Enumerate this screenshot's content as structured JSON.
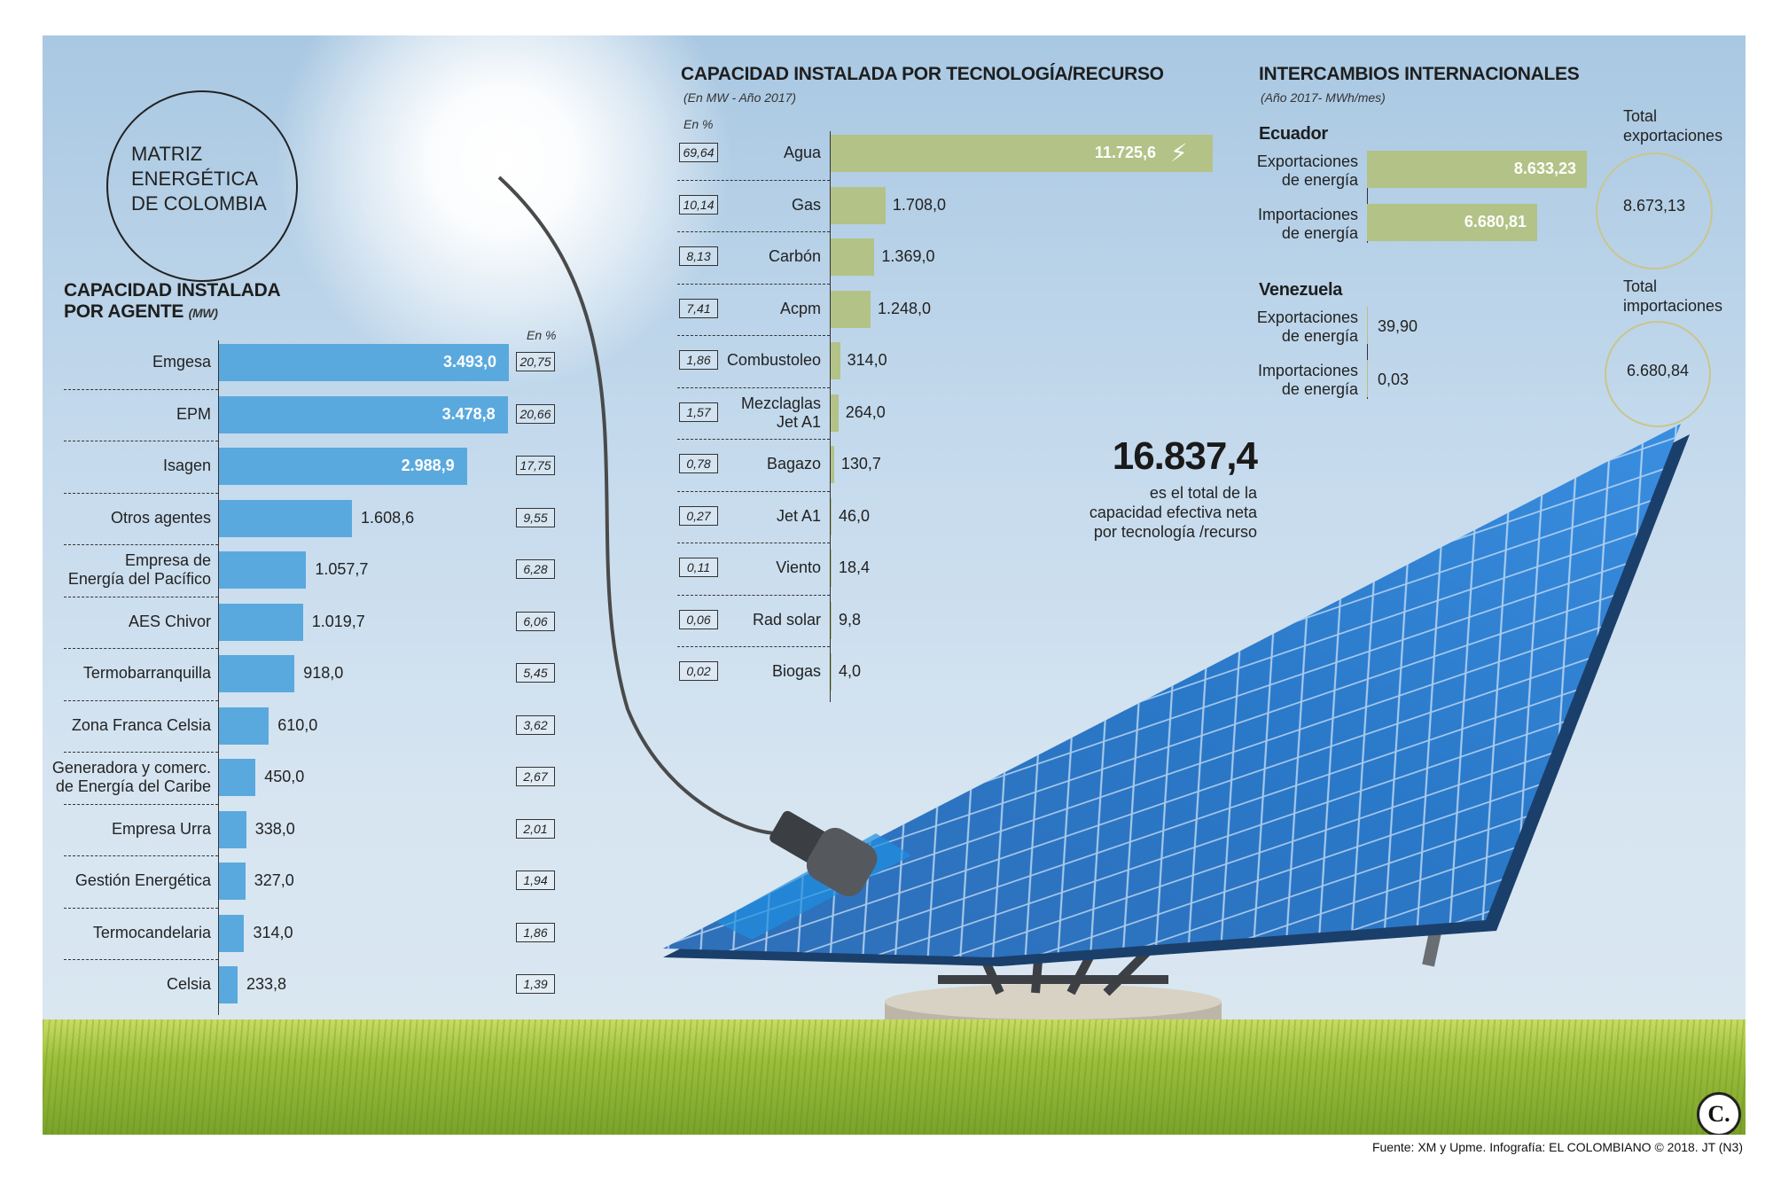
{
  "title": [
    "MATRIZ",
    "ENERGÉTICA",
    "DE COLOMBIA"
  ],
  "colors": {
    "agent_bar": "#5aa9de",
    "tech_bar": "#b3c286",
    "exchange_bar": "#b3c286"
  },
  "agents": {
    "heading_line1": "CAPACIDAD INSTALADA",
    "heading_line2": "POR AGENTE",
    "unit": "(MW)",
    "pct_header": "En %"
  },
  "tech": {
    "heading": "CAPACIDAD INSTALADA POR TECNOLOGÍA/RECURSO",
    "sub": "(En MW - Año 2017)",
    "pct_header": "En %"
  },
  "total": {
    "value": "16.837,4",
    "caption": [
      "es el total de la",
      "capacidad efectiva neta",
      "por tecnología /recurso"
    ]
  },
  "exchanges": {
    "heading": "INTERCAMBIOS INTERNACIONALES",
    "sub": "(Año 2017- MWh/mes)",
    "total_exports_label": [
      "Total",
      "exportaciones"
    ],
    "total_exports_value": "8.673,13",
    "total_imports_label": [
      "Total",
      "importaciones"
    ],
    "total_imports_value": "6.680,84"
  },
  "footer": "Fuente: XM y Upme. Infografía: EL COLOMBIANO © 2018. JT (N3)",
  "logo_text": "C.",
  "chart_data": [
    {
      "type": "bar",
      "orientation": "horizontal",
      "title": "CAPACIDAD INSTALADA POR AGENTE (MW)",
      "categories": [
        [
          "Emgesa"
        ],
        [
          "EPM"
        ],
        [
          "Isagen"
        ],
        [
          "Otros agentes"
        ],
        [
          "Empresa de",
          "Energía del Pacífico"
        ],
        [
          "AES Chivor"
        ],
        [
          "Termobarranquilla"
        ],
        [
          "Zona Franca Celsia"
        ],
        [
          "Generadora y comerc.",
          "de Energía del Caribe"
        ],
        [
          "Empresa Urra"
        ],
        [
          "Gestión Energética"
        ],
        [
          "Termocandelaria"
        ],
        [
          "Celsia"
        ]
      ],
      "values": [
        3493.0,
        3478.8,
        2988.9,
        1608.6,
        1057.7,
        1019.7,
        918.0,
        610.0,
        450.0,
        338.0,
        327.0,
        314.0,
        233.8
      ],
      "value_labels": [
        "3.493,0",
        "3.478,8",
        "2.988,9",
        "1.608,6",
        "1.057,7",
        "1.019,7",
        "918,0",
        "610,0",
        "450,0",
        "338,0",
        "327,0",
        "314,0",
        "233,8"
      ],
      "percent_labels": [
        "20,75",
        "20,66",
        "17,75",
        "9,55",
        "6,28",
        "6,06",
        "5,45",
        "3,62",
        "2,67",
        "2,01",
        "1,94",
        "1,86",
        "1,39"
      ]
    },
    {
      "type": "bar",
      "orientation": "horizontal",
      "title": "CAPACIDAD INSTALADA POR TECNOLOGÍA/RECURSO",
      "categories": [
        [
          "Agua"
        ],
        [
          "Gas"
        ],
        [
          "Carbón"
        ],
        [
          "Acpm"
        ],
        [
          "Combustoleo"
        ],
        [
          "Mezclaglas",
          "Jet A1"
        ],
        [
          "Bagazo"
        ],
        [
          "Jet A1"
        ],
        [
          "Viento"
        ],
        [
          "Rad solar"
        ],
        [
          "Biogas"
        ]
      ],
      "values": [
        11725.6,
        1708.0,
        1369.0,
        1248.0,
        314.0,
        264.0,
        130.7,
        46.0,
        18.4,
        9.8,
        4.0
      ],
      "value_labels": [
        "11.725,6",
        "1.708,0",
        "1.369,0",
        "1.248,0",
        "314,0",
        "264,0",
        "130,7",
        "46,0",
        "18,4",
        "9,8",
        "4,0"
      ],
      "percent_labels": [
        "69,64",
        "10,14",
        "8,13",
        "7,41",
        "1,86",
        "1,57",
        "0,78",
        "0,27",
        "0,11",
        "0,06",
        "0,02"
      ]
    },
    {
      "type": "bar",
      "orientation": "horizontal",
      "title": "INTERCAMBIOS INTERNACIONALES",
      "groups": [
        {
          "name": "Ecuador",
          "categories": [
            [
              "Exportaciones",
              "de energía"
            ],
            [
              "Importaciones",
              "de energía"
            ]
          ],
          "values": [
            8633.23,
            6680.81
          ],
          "value_labels": [
            "8.633,23",
            "6.680,81"
          ]
        },
        {
          "name": "Venezuela",
          "categories": [
            [
              "Exportaciones",
              "de energía"
            ],
            [
              "Importaciones",
              "de energía"
            ]
          ],
          "values": [
            39.9,
            0.03
          ],
          "value_labels": [
            "39,90",
            "0,03"
          ]
        }
      ]
    }
  ]
}
